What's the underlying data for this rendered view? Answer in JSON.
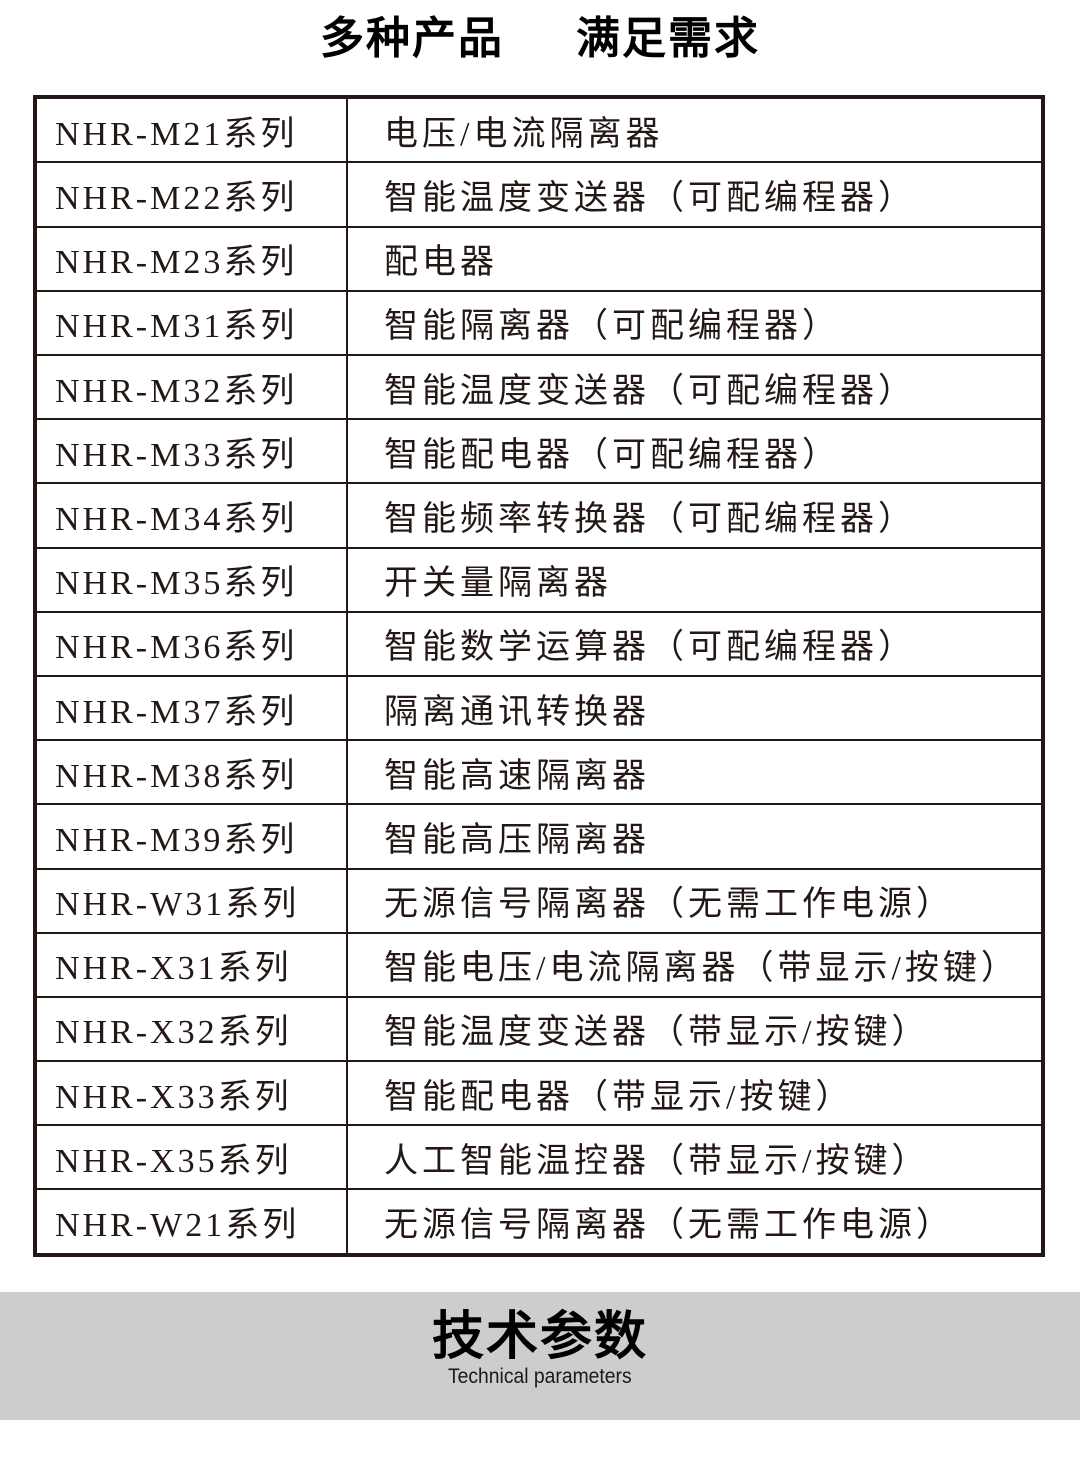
{
  "title": {
    "left": "多种产品",
    "right": "满足需求"
  },
  "table": {
    "rows": [
      {
        "series": "NHR-M21系列",
        "description": "电压/电流隔离器"
      },
      {
        "series": "NHR-M22系列",
        "description": "智能温度变送器（可配编程器）"
      },
      {
        "series": "NHR-M23系列",
        "description": "配电器"
      },
      {
        "series": "NHR-M31系列",
        "description": "智能隔离器（可配编程器）"
      },
      {
        "series": "NHR-M32系列",
        "description": "智能温度变送器（可配编程器）"
      },
      {
        "series": "NHR-M33系列",
        "description": "智能配电器（可配编程器）"
      },
      {
        "series": "NHR-M34系列",
        "description": "智能频率转换器（可配编程器）"
      },
      {
        "series": "NHR-M35系列",
        "description": "开关量隔离器"
      },
      {
        "series": "NHR-M36系列",
        "description": "智能数学运算器（可配编程器）"
      },
      {
        "series": "NHR-M37系列",
        "description": "隔离通讯转换器"
      },
      {
        "series": "NHR-M38系列",
        "description": "智能高速隔离器"
      },
      {
        "series": "NHR-M39系列",
        "description": "智能高压隔离器"
      },
      {
        "series": "NHR-W31系列",
        "description": "无源信号隔离器（无需工作电源）"
      },
      {
        "series": "NHR-X31系列",
        "description": "智能电压/电流隔离器（带显示/按键）"
      },
      {
        "series": "NHR-X32系列",
        "description": "智能温度变送器（带显示/按键）"
      },
      {
        "series": "NHR-X33系列",
        "description": "智能配电器（带显示/按键）"
      },
      {
        "series": "NHR-X35系列",
        "description": "人工智能温控器（带显示/按键）"
      },
      {
        "series": "NHR-W21系列",
        "description": "无源信号隔离器（无需工作电源）"
      }
    ]
  },
  "footer": {
    "heading": "技术参数",
    "subheading": "Technical parameters"
  },
  "colors": {
    "table_border": "#231815",
    "table_text": "#231815",
    "title_text": "#000000",
    "band_background": "#cdcdcd"
  }
}
